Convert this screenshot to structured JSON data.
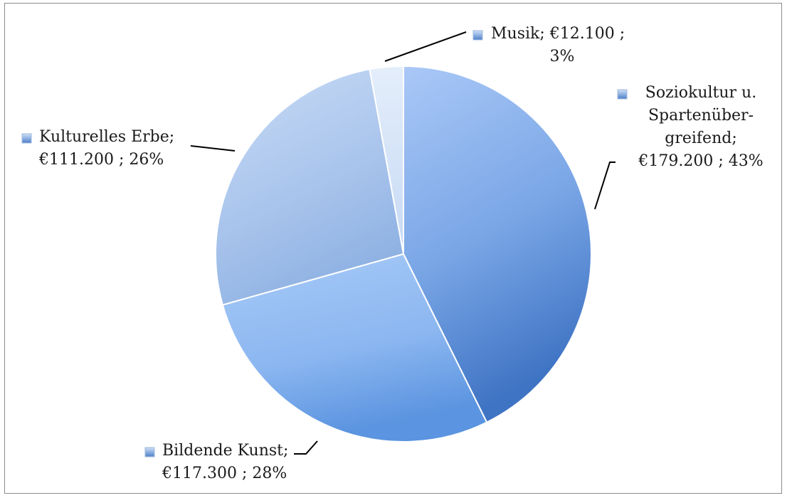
{
  "chart_data": {
    "type": "pie",
    "slices": [
      {
        "category": "Soziokultur u. Spartenüber-greifend",
        "value": 179200,
        "value_label": "€179.200",
        "percent_label": "43%",
        "color": "#7aa6e6"
      },
      {
        "category": "Bildende Kunst",
        "value": 117300,
        "value_label": "€117.300",
        "percent_label": "28%",
        "color": "#8bb6f0"
      },
      {
        "category": "Kulturelles Erbe",
        "value": 111200,
        "value_label": "€111.200",
        "percent_label": "26%",
        "color": "#a9c7f0"
      },
      {
        "category": "Musik",
        "value": 12100,
        "value_label": "€12.100",
        "percent_label": "3%",
        "color": "#d3e3f8"
      }
    ],
    "labels": [
      {
        "lines": [
          "Soziokultur u.",
          "Spartenüber-",
          "greifend;",
          "€179.200 ; 43%"
        ]
      },
      {
        "lines": [
          "Bildende Kunst;",
          "€117.300 ; 28%"
        ]
      },
      {
        "lines": [
          "Kulturelles Erbe;",
          "€111.200 ; 26%"
        ]
      },
      {
        "lines": [
          "Musik; €12.100 ;",
          "3%"
        ]
      }
    ],
    "legend_key_color": "#5b8fd6"
  }
}
